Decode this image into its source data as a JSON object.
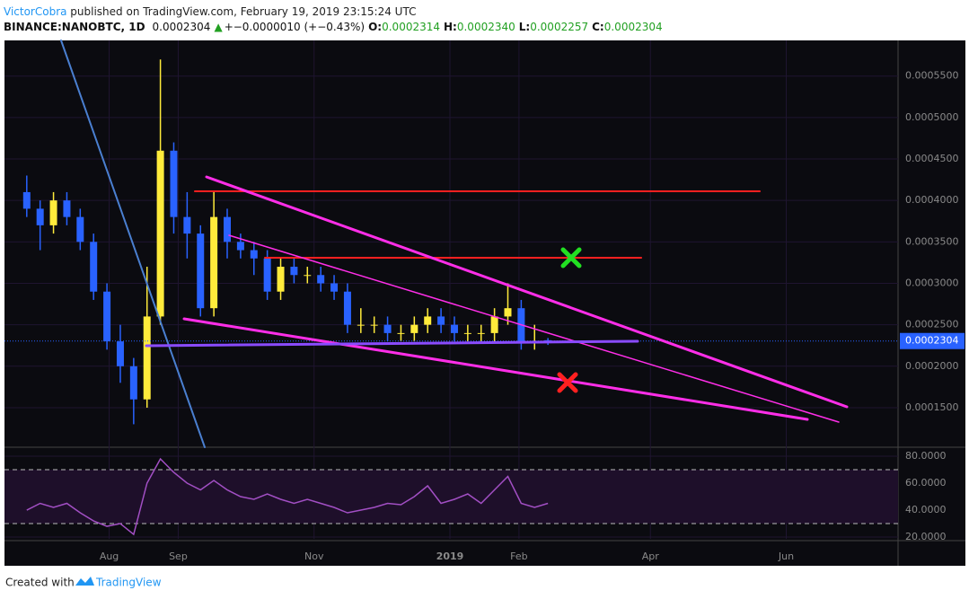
{
  "header": {
    "author": "VictorCobra",
    "published": " published on TradingView.com, February 19, 2019 23:15:24 UTC",
    "symbol": "BINANCE:NANOBTC, 1D",
    "price": "0.0002304",
    "arrow": "▲",
    "change": "+−0.0000010 (+−0.43%)",
    "ohlc": [
      {
        "label": "O:",
        "value": "0.0002314"
      },
      {
        "label": "H:",
        "value": "0.0002340"
      },
      {
        "label": "L:",
        "value": "0.0002257"
      },
      {
        "label": "C:",
        "value": "0.0002304"
      }
    ]
  },
  "chart_data": [
    {
      "type": "candlestick",
      "up_color": "#ffeb3b",
      "down_color": "#2962ff",
      "x": [
        10,
        16,
        22,
        28,
        34,
        40,
        46,
        52,
        58,
        64,
        70,
        76,
        82,
        88,
        94,
        100,
        106,
        112,
        118,
        124,
        130,
        136,
        142,
        148,
        154,
        160,
        166,
        172,
        178,
        184,
        190,
        196,
        202,
        208,
        214,
        220,
        226,
        232,
        238,
        244
      ],
      "open": [
        0.00041,
        0.00039,
        0.00037,
        0.0004,
        0.00038,
        0.00035,
        0.00029,
        0.00023,
        0.0002,
        0.00016,
        0.00026,
        0.00046,
        0.00038,
        0.00036,
        0.00027,
        0.00038,
        0.00035,
        0.00034,
        0.00033,
        0.00029,
        0.00032,
        0.00031,
        0.00031,
        0.0003,
        0.00029,
        0.00025,
        0.00025,
        0.00025,
        0.00024,
        0.00024,
        0.00025,
        0.00026,
        0.00025,
        0.00024,
        0.00024,
        0.00024,
        0.00026,
        0.00027,
        0.00023,
        0.0002314
      ],
      "high": [
        0.00043,
        0.0004,
        0.00041,
        0.00041,
        0.00039,
        0.00036,
        0.0003,
        0.00025,
        0.00021,
        0.00032,
        0.00057,
        0.00047,
        0.00041,
        0.00037,
        0.00041,
        0.00039,
        0.00036,
        0.00035,
        0.00034,
        0.00033,
        0.00033,
        0.00032,
        0.00032,
        0.00031,
        0.0003,
        0.00027,
        0.00026,
        0.00026,
        0.00025,
        0.00026,
        0.00027,
        0.00027,
        0.00026,
        0.00025,
        0.00025,
        0.00027,
        0.0003,
        0.00028,
        0.00025,
        0.000234
      ],
      "low": [
        0.00038,
        0.00034,
        0.00036,
        0.00037,
        0.00034,
        0.00028,
        0.00022,
        0.00018,
        0.00013,
        0.00015,
        0.00025,
        0.00036,
        0.00033,
        0.00026,
        0.00026,
        0.00033,
        0.00033,
        0.00031,
        0.00028,
        0.00028,
        0.0003,
        0.0003,
        0.00029,
        0.00028,
        0.00024,
        0.00024,
        0.00024,
        0.00023,
        0.00023,
        0.00023,
        0.00024,
        0.00024,
        0.00023,
        0.00023,
        0.00023,
        0.00023,
        0.00025,
        0.00022,
        0.00022,
        0.0002257
      ],
      "close": [
        0.00039,
        0.00037,
        0.0004,
        0.00038,
        0.00035,
        0.00029,
        0.00023,
        0.0002,
        0.00016,
        0.00026,
        0.00046,
        0.00038,
        0.00036,
        0.00027,
        0.00038,
        0.00035,
        0.00034,
        0.00033,
        0.00029,
        0.00032,
        0.00031,
        0.00031,
        0.0003,
        0.00029,
        0.00025,
        0.00025,
        0.00025,
        0.00024,
        0.00024,
        0.00025,
        0.00026,
        0.00025,
        0.00024,
        0.00024,
        0.00024,
        0.00026,
        0.00027,
        0.00023,
        0.00023,
        0.0002304
      ],
      "last_price": {
        "value": 0.0002304,
        "label": "0.0002304"
      },
      "xlim": [
        0,
        401.2
      ],
      "xticks": [
        {
          "value": 47,
          "label": "Aug"
        },
        {
          "value": 78,
          "label": "Sep"
        },
        {
          "value": 139,
          "label": "Nov"
        },
        {
          "value": 200,
          "label": "2019"
        },
        {
          "value": 231,
          "label": "Feb"
        },
        {
          "value": 290,
          "label": "Apr"
        },
        {
          "value": 351,
          "label": "Jun"
        }
      ],
      "ylim": [
        0.0001023,
        0.000593
      ],
      "yticks": [
        {
          "value": 0.00015,
          "label": "0.0001500"
        },
        {
          "value": 0.0002,
          "label": "0.0002000"
        },
        {
          "value": 0.00025,
          "label": "0.0002500"
        },
        {
          "value": 0.0003,
          "label": "0.0003000"
        },
        {
          "value": 0.00035,
          "label": "0.0003500"
        },
        {
          "value": 0.0004,
          "label": "0.0004000"
        },
        {
          "value": 0.00045,
          "label": "0.0004500"
        },
        {
          "value": 0.0005,
          "label": "0.0005000"
        },
        {
          "value": 0.00055,
          "label": "0.0005500"
        }
      ],
      "grid": true
    },
    {
      "type": "line",
      "color": "#a24fc4",
      "x": [
        10,
        16,
        22,
        28,
        34,
        40,
        46,
        52,
        58,
        64,
        70,
        76,
        82,
        88,
        94,
        100,
        106,
        112,
        118,
        124,
        130,
        136,
        142,
        148,
        154,
        160,
        166,
        172,
        178,
        184,
        190,
        196,
        202,
        208,
        214,
        220,
        226,
        232,
        238,
        244
      ],
      "values": [
        40,
        45,
        42,
        45,
        38,
        32,
        28,
        30,
        22,
        60,
        78,
        68,
        60,
        55,
        62,
        55,
        50,
        48,
        52,
        48,
        45,
        48,
        45,
        42,
        38,
        40,
        42,
        45,
        44,
        50,
        58,
        45,
        48,
        52,
        45,
        55,
        65,
        45,
        42,
        45
      ],
      "bands": [
        30,
        70
      ],
      "xlim": [
        0,
        401.2
      ],
      "ylim": [
        18.7,
        85.3
      ],
      "yticks": [
        {
          "value": 20,
          "label": "20.0000"
        },
        {
          "value": 40,
          "label": "40.0000"
        },
        {
          "value": 60,
          "label": "60.0000"
        },
        {
          "value": 80,
          "label": "80.0000"
        }
      ],
      "grid": true
    }
  ],
  "footer": {
    "created": "Created with",
    "brand": "TradingView"
  }
}
